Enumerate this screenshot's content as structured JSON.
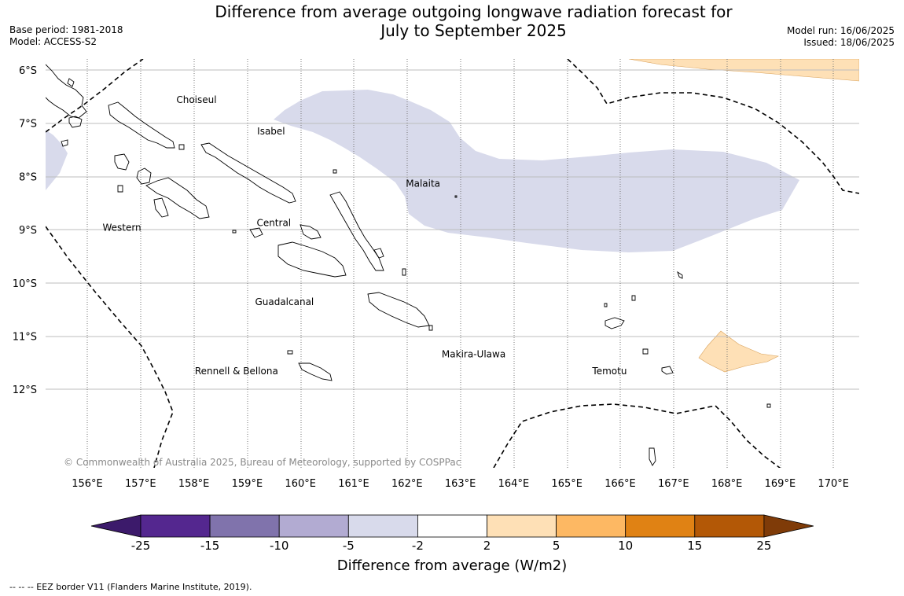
{
  "title_line1": "Difference from average outgoing longwave radiation forecast for",
  "title_line2": "July to September 2025",
  "base_period": "Base period: 1981-2018",
  "model": "Model: ACCESS-S2",
  "model_run": "Model run: 16/06/2025",
  "issued": "Issued: 18/06/2025",
  "copyright": "© Commonwealth of Australia 2025, Bureau of Meteorology, supported by COSPPac",
  "footnote": "--  --  -- EEZ border V11 (Flanders Marine Institute, 2019).",
  "map": {
    "lat_labels": [
      "6°S",
      "7°S",
      "8°S",
      "9°S",
      "10°S",
      "11°S",
      "12°S"
    ],
    "lon_labels": [
      "156°E",
      "157°E",
      "158°E",
      "159°E",
      "160°E",
      "161°E",
      "162°E",
      "163°E",
      "164°E",
      "165°E",
      "166°E",
      "167°E",
      "168°E",
      "169°E",
      "170°E"
    ],
    "province_labels": [
      {
        "name": "Choiseul",
        "lon": 158.05,
        "lat": -6.62
      },
      {
        "name": "Isabel",
        "lon": 159.45,
        "lat": -7.21
      },
      {
        "name": "Malaita",
        "lon": 162.3,
        "lat": -8.19
      },
      {
        "name": "Western",
        "lon": 156.65,
        "lat": -9.02
      },
      {
        "name": "Central",
        "lon": 159.5,
        "lat": -8.93
      },
      {
        "name": "Guadalcanal",
        "lon": 159.7,
        "lat": -10.42
      },
      {
        "name": "Makira-Ulawa",
        "lon": 163.25,
        "lat": -11.4
      },
      {
        "name": "Rennell & Bellona",
        "lon": 158.8,
        "lat": -11.72
      },
      {
        "name": "Temotu",
        "lon": 165.8,
        "lat": -11.72
      }
    ]
  },
  "colorbar": {
    "title": "Difference from average (W/m2)",
    "ticks": [
      "-25",
      "-15",
      "-10",
      "-5",
      "-2",
      "2",
      "5",
      "10",
      "15",
      "25"
    ],
    "colors": [
      "#3c1a6b",
      "#54278f",
      "#8073ac",
      "#b2abd2",
      "#d8daeb",
      "#ffffff",
      "#fee0b6",
      "#fdb863",
      "#e08214",
      "#b35806",
      "#7f3b08"
    ]
  }
}
